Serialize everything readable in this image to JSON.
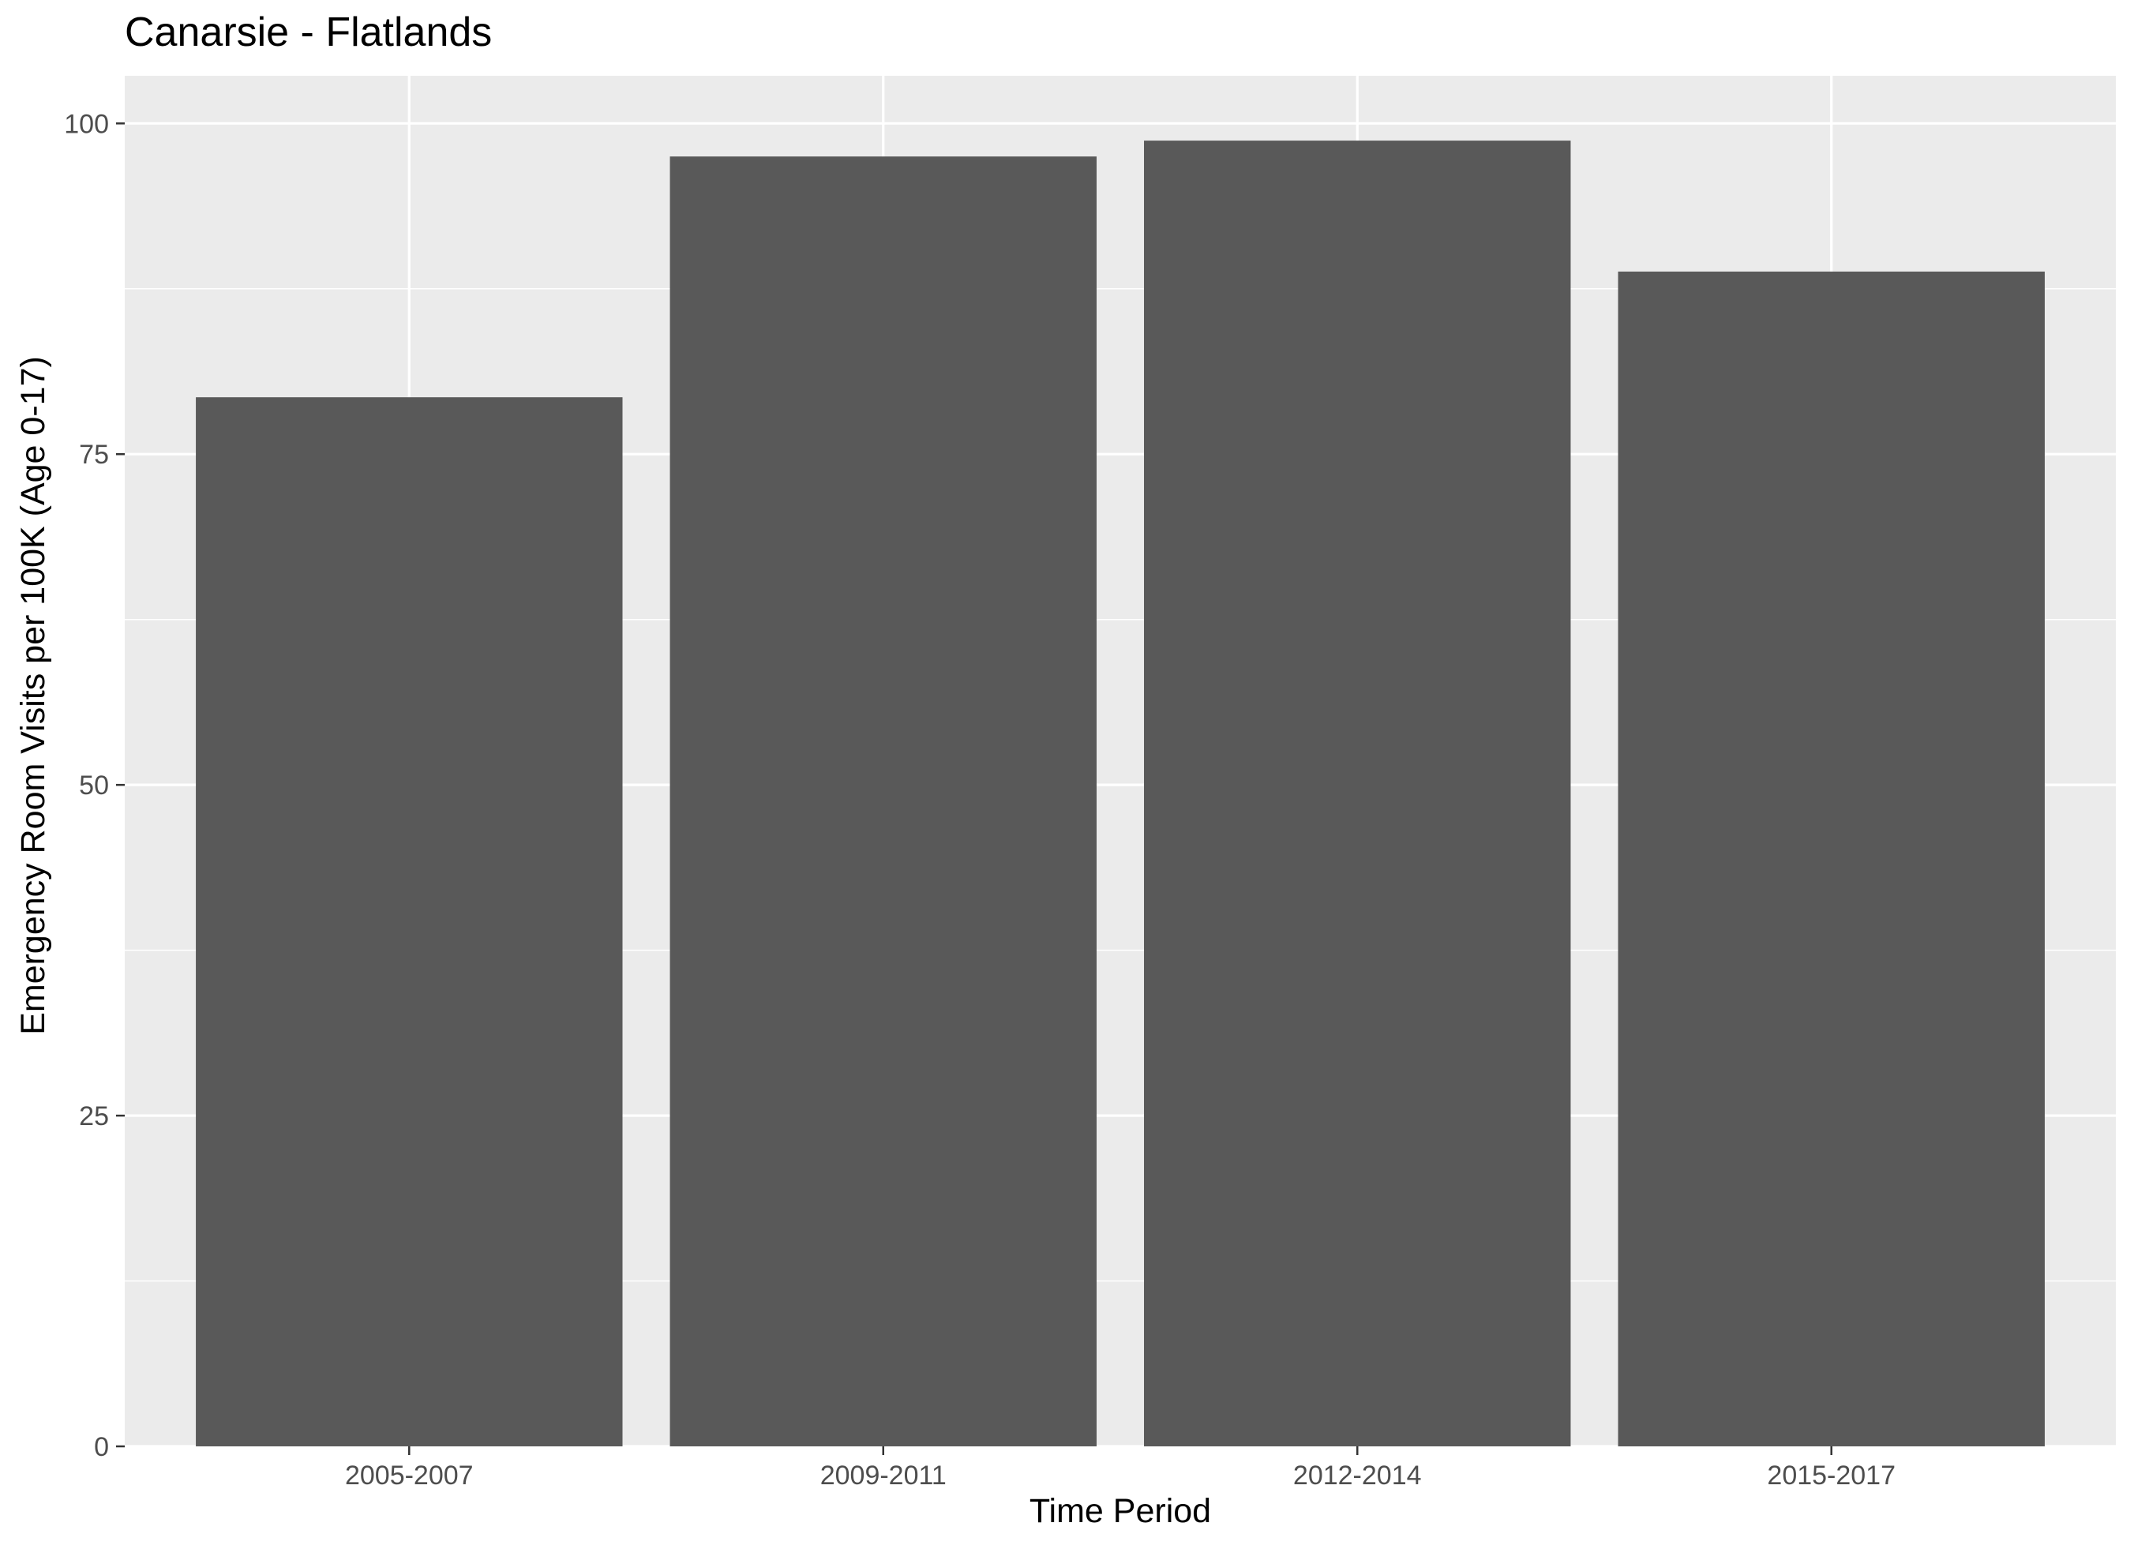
{
  "chart_data": {
    "type": "bar",
    "title": "Canarsie - Flatlands",
    "xlabel": "Time Period",
    "ylabel": "Emergency Room Visits per 100K (Age 0-17)",
    "categories": [
      "2005-2007",
      "2009-2011",
      "2012-2014",
      "2015-2017"
    ],
    "values": [
      79.3,
      97.5,
      98.7,
      88.8
    ],
    "ylim": [
      0,
      103.6
    ],
    "yticks": [
      0,
      25,
      50,
      75,
      100
    ],
    "yminor": [
      12.5,
      37.5,
      62.5,
      87.5
    ],
    "grid": true,
    "legend": "none",
    "colors": {
      "bar": "#595959",
      "panel": "#ebebeb",
      "grid": "#ffffff",
      "tick": "#333333"
    }
  }
}
